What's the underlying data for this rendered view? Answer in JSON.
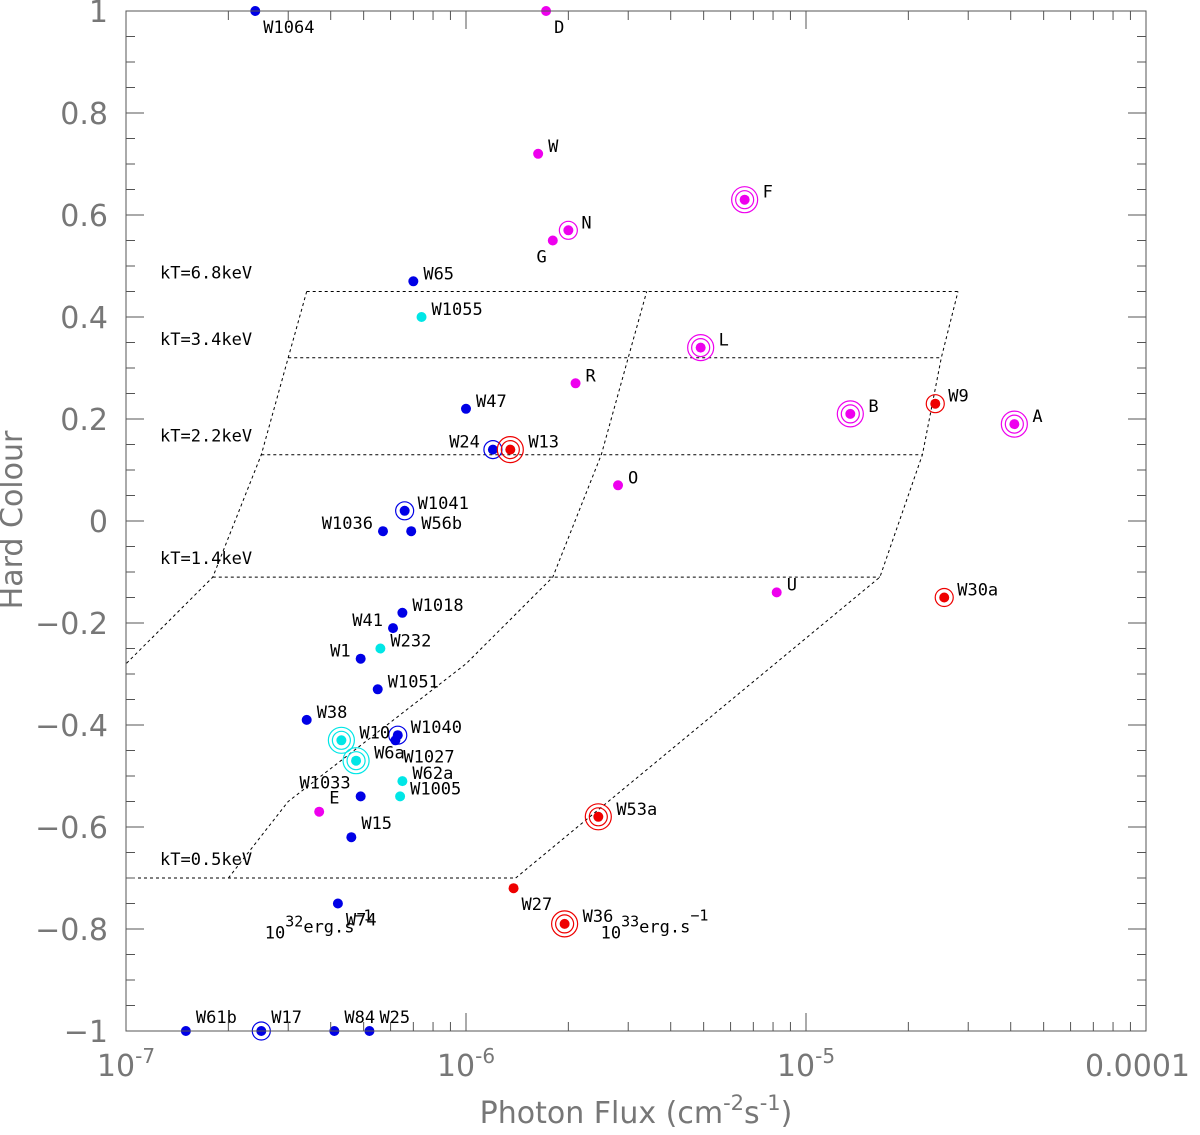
{
  "chart_data": {
    "type": "scatter",
    "xscale": "log",
    "xlim": [
      1e-07,
      0.0001
    ],
    "ylim": [
      -1,
      1
    ],
    "xlabel": "Photon Flux (cm",
    "xlabel_sup1": "-2",
    "xlabel_mid": "s",
    "xlabel_sup2": "-1",
    "xlabel_end": ")",
    "ylabel": "Hard Colour",
    "x_ticks": [
      {
        "value": 1e-07,
        "base": "10",
        "exp": "-7"
      },
      {
        "value": 1e-06,
        "base": "10",
        "exp": "-6"
      },
      {
        "value": 1e-05,
        "base": "10",
        "exp": "-5"
      },
      {
        "value": 0.0001,
        "base": "0.0001",
        "exp": ""
      }
    ],
    "y_ticks": [
      {
        "value": 1,
        "label": "1"
      },
      {
        "value": 0.8,
        "label": "0.8"
      },
      {
        "value": 0.6,
        "label": "0.6"
      },
      {
        "value": 0.4,
        "label": "0.4"
      },
      {
        "value": 0.2,
        "label": "0.2"
      },
      {
        "value": 0,
        "label": "0"
      },
      {
        "value": -0.2,
        "label": "−0.2"
      },
      {
        "value": -0.4,
        "label": "−0.4"
      },
      {
        "value": -0.6,
        "label": "−0.6"
      },
      {
        "value": -0.8,
        "label": "−0.8"
      },
      {
        "value": -1,
        "label": "−1"
      }
    ],
    "colors": {
      "blue": "#0000e6",
      "cyan": "#00e6e6",
      "magenta": "#ee00ee",
      "red": "#ee0000"
    },
    "grid_lines": [
      {
        "kt": "kT=6.8keV",
        "y": 0.45,
        "x_start": 3.4e-07,
        "x_end": 2.8e-05
      },
      {
        "kt": "kT=3.4keV",
        "y": 0.32,
        "x_start": 3e-07,
        "x_end": 2.5e-05
      },
      {
        "kt": "kT=2.2keV",
        "y": 0.13,
        "x_start": 2.5e-07,
        "x_end": 2.2e-05
      },
      {
        "kt": "kT=1.4keV",
        "y": -0.11,
        "x_start": 1.8e-07,
        "x_end": 1.65e-05
      },
      {
        "kt": "kT=0.5keV",
        "y": -0.7,
        "x_start": 1e-07,
        "x_end": 1.4e-06
      }
    ],
    "iso_lines": [
      {
        "points": [
          [
            3.4e-07,
            0.45
          ],
          [
            3e-07,
            0.32
          ],
          [
            2.5e-07,
            0.13
          ],
          [
            1.8e-07,
            -0.11
          ],
          [
            1e-07,
            -0.28
          ]
        ]
      },
      {
        "points": [
          [
            2e-07,
            -0.7
          ],
          [
            3e-07,
            -0.55
          ],
          [
            1e-06,
            -0.28
          ],
          [
            1.8e-06,
            -0.11
          ],
          [
            2.5e-06,
            0.13
          ],
          [
            3e-06,
            0.32
          ],
          [
            3.4e-06,
            0.45
          ]
        ]
      },
      {
        "points": [
          [
            1.4e-06,
            -0.7
          ],
          [
            1.65e-05,
            -0.11
          ],
          [
            2.2e-05,
            0.13
          ],
          [
            2.5e-05,
            0.32
          ],
          [
            2.8e-05,
            0.45
          ]
        ]
      }
    ],
    "luminosity_labels": [
      {
        "base": "10",
        "exp": "32",
        "unit": "erg.s",
        "unit_exp": "−1",
        "x": 1.8e-07,
        "y": -0.76
      },
      {
        "base": "10",
        "exp": "33",
        "unit": "erg.s",
        "unit_exp": "−1",
        "x": 1.75e-06,
        "y": -0.76
      }
    ],
    "points": [
      {
        "label": "W1064",
        "x": 2.4e-07,
        "y": 1.0,
        "color": "blue",
        "rings": 0,
        "lpos": "br"
      },
      {
        "label": "D",
        "x": 1.72e-06,
        "y": 1.0,
        "color": "magenta",
        "rings": 0,
        "lpos": "br"
      },
      {
        "label": "W",
        "x": 1.63e-06,
        "y": 0.72,
        "color": "magenta",
        "rings": 0,
        "lpos": "r"
      },
      {
        "label": "F",
        "x": 6.6e-06,
        "y": 0.63,
        "color": "magenta",
        "rings": 2,
        "lpos": "r"
      },
      {
        "label": "N",
        "x": 2e-06,
        "y": 0.57,
        "color": "magenta",
        "rings": 1,
        "lpos": "r"
      },
      {
        "label": "G",
        "x": 1.8e-06,
        "y": 0.55,
        "color": "magenta",
        "rings": 0,
        "lpos": "bl"
      },
      {
        "label": "W65",
        "x": 7e-07,
        "y": 0.47,
        "color": "blue",
        "rings": 0,
        "lpos": "r"
      },
      {
        "label": "W1055",
        "x": 7.4e-07,
        "y": 0.4,
        "color": "cyan",
        "rings": 0,
        "lpos": "r"
      },
      {
        "label": "L",
        "x": 4.9e-06,
        "y": 0.34,
        "color": "magenta",
        "rings": 2,
        "lpos": "r"
      },
      {
        "label": "R",
        "x": 2.1e-06,
        "y": 0.27,
        "color": "magenta",
        "rings": 0,
        "lpos": "r"
      },
      {
        "label": "W47",
        "x": 1e-06,
        "y": 0.22,
        "color": "blue",
        "rings": 0,
        "lpos": "r"
      },
      {
        "label": "W9",
        "x": 2.4e-05,
        "y": 0.23,
        "color": "red",
        "rings": 1,
        "lpos": "r"
      },
      {
        "label": "B",
        "x": 1.35e-05,
        "y": 0.21,
        "color": "magenta",
        "rings": 2,
        "lpos": "r"
      },
      {
        "label": "A",
        "x": 4.1e-05,
        "y": 0.19,
        "color": "magenta",
        "rings": 2,
        "lpos": "r"
      },
      {
        "label": "W24",
        "x": 1.2e-06,
        "y": 0.14,
        "color": "blue",
        "rings": 1,
        "lpos": "l"
      },
      {
        "label": "W13",
        "x": 1.35e-06,
        "y": 0.14,
        "color": "red",
        "rings": 2,
        "lpos": "r"
      },
      {
        "label": "O",
        "x": 2.8e-06,
        "y": 0.07,
        "color": "magenta",
        "rings": 0,
        "lpos": "r"
      },
      {
        "label": "W1041",
        "x": 6.6e-07,
        "y": 0.02,
        "color": "blue",
        "rings": 1,
        "lpos": "r"
      },
      {
        "label": "W1036",
        "x": 5.7e-07,
        "y": -0.02,
        "color": "blue",
        "rings": 0,
        "lpos": "l"
      },
      {
        "label": "W56b",
        "x": 6.9e-07,
        "y": -0.02,
        "color": "blue",
        "rings": 0,
        "lpos": "r"
      },
      {
        "label": "U",
        "x": 8.2e-06,
        "y": -0.14,
        "color": "magenta",
        "rings": 0,
        "lpos": "r"
      },
      {
        "label": "W30a",
        "x": 2.55e-05,
        "y": -0.15,
        "color": "red",
        "rings": 1,
        "lpos": "r"
      },
      {
        "label": "W1018",
        "x": 6.5e-07,
        "y": -0.18,
        "color": "blue",
        "rings": 0,
        "lpos": "r"
      },
      {
        "label": "W41",
        "x": 6.1e-07,
        "y": -0.21,
        "color": "blue",
        "rings": 0,
        "lpos": "l"
      },
      {
        "label": "W232",
        "x": 5.6e-07,
        "y": -0.25,
        "color": "cyan",
        "rings": 0,
        "lpos": "r"
      },
      {
        "label": "W1",
        "x": 4.9e-07,
        "y": -0.27,
        "color": "blue",
        "rings": 0,
        "lpos": "l"
      },
      {
        "label": "W1051",
        "x": 5.5e-07,
        "y": -0.33,
        "color": "blue",
        "rings": 0,
        "lpos": "r"
      },
      {
        "label": "W38",
        "x": 3.4e-07,
        "y": -0.39,
        "color": "blue",
        "rings": 0,
        "lpos": "r"
      },
      {
        "label": "W10",
        "x": 4.3e-07,
        "y": -0.43,
        "color": "cyan",
        "rings": 2,
        "lpos": "r"
      },
      {
        "label": "W1040",
        "x": 6.3e-07,
        "y": -0.42,
        "color": "blue",
        "rings": 1,
        "lpos": "r"
      },
      {
        "label": "W1027",
        "x": 6.2e-07,
        "y": -0.43,
        "color": "blue",
        "rings": 0,
        "lpos": "br"
      },
      {
        "label": "W6a",
        "x": 4.75e-07,
        "y": -0.47,
        "color": "cyan",
        "rings": 2,
        "lpos": "r"
      },
      {
        "label": "W62a",
        "x": 6.5e-07,
        "y": -0.51,
        "color": "cyan",
        "rings": 0,
        "lpos": "r"
      },
      {
        "label": "W1033",
        "x": 4.9e-07,
        "y": -0.54,
        "color": "blue",
        "rings": 0,
        "lpos": "tl"
      },
      {
        "label": "W1005",
        "x": 6.4e-07,
        "y": -0.54,
        "color": "cyan",
        "rings": 0,
        "lpos": "r"
      },
      {
        "label": "E",
        "x": 3.7e-07,
        "y": -0.57,
        "color": "magenta",
        "rings": 0,
        "lpos": "tr"
      },
      {
        "label": "W53a",
        "x": 2.45e-06,
        "y": -0.58,
        "color": "red",
        "rings": 2,
        "lpos": "r"
      },
      {
        "label": "W15",
        "x": 4.6e-07,
        "y": -0.62,
        "color": "blue",
        "rings": 0,
        "lpos": "tr"
      },
      {
        "label": "W27",
        "x": 1.38e-06,
        "y": -0.72,
        "color": "red",
        "rings": 0,
        "lpos": "br"
      },
      {
        "label": "W74",
        "x": 4.2e-07,
        "y": -0.75,
        "color": "blue",
        "rings": 0,
        "lpos": "br"
      },
      {
        "label": "W36",
        "x": 1.95e-06,
        "y": -0.79,
        "color": "red",
        "rings": 2,
        "lpos": "r"
      },
      {
        "label": "W61b",
        "x": 1.5e-07,
        "y": -1.0,
        "color": "blue",
        "rings": 0,
        "lpos": "tr"
      },
      {
        "label": "W17",
        "x": 2.5e-07,
        "y": -1.0,
        "color": "blue",
        "rings": 1,
        "lpos": "tr"
      },
      {
        "label": "W84",
        "x": 4.1e-07,
        "y": -1.0,
        "color": "blue",
        "rings": 0,
        "lpos": "tr"
      },
      {
        "label": "W25",
        "x": 5.2e-07,
        "y": -1.0,
        "color": "blue",
        "rings": 0,
        "lpos": "tr"
      }
    ]
  }
}
